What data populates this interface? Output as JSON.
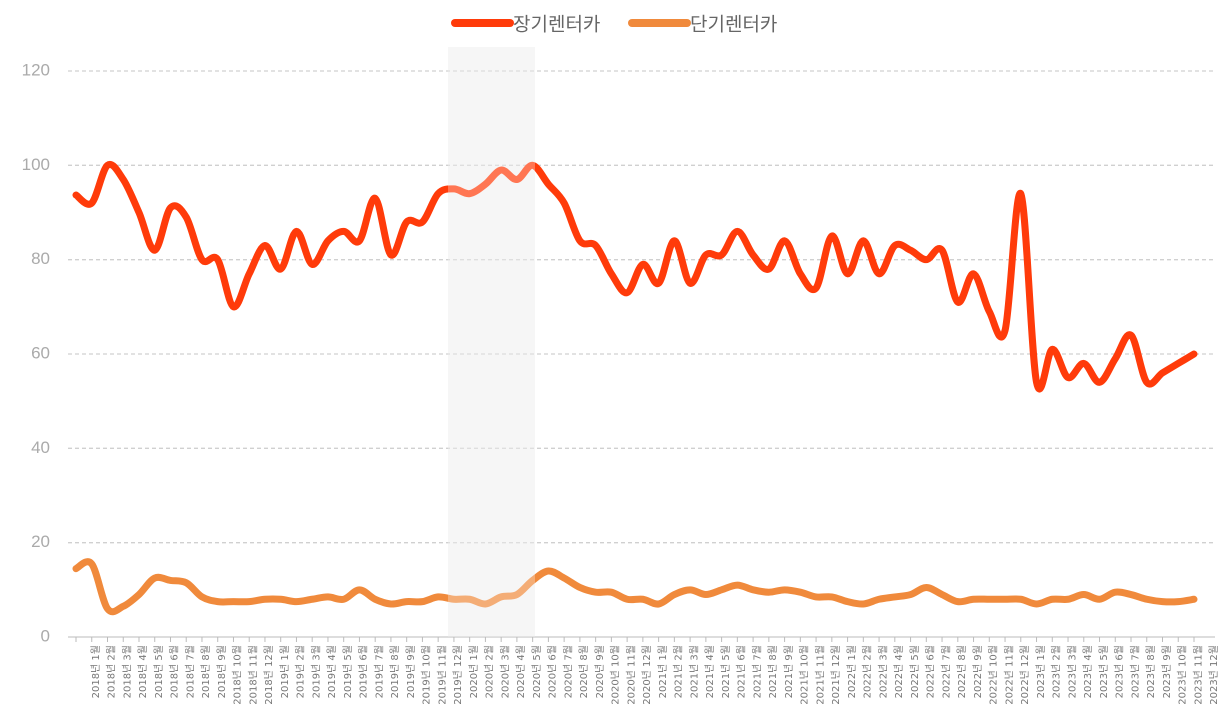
{
  "chart_data": {
    "type": "line",
    "categories": [
      "2018년 1월",
      "2018년 2월",
      "2018년 3월",
      "2018년 4월",
      "2018년 5월",
      "2018년 6월",
      "2018년 7월",
      "2018년 8월",
      "2018년 9월",
      "2018년 10월",
      "2018년 11월",
      "2018년 12월",
      "2019년 1월",
      "2019년 2월",
      "2019년 3월",
      "2019년 4월",
      "2019년 5월",
      "2019년 6월",
      "2019년 7월",
      "2019년 8월",
      "2019년 9월",
      "2019년 10월",
      "2019년 11월",
      "2019년 12월",
      "2020년 1월",
      "2020년 2월",
      "2020년 3월",
      "2020년 4월",
      "2020년 5월",
      "2020년 6월",
      "2020년 7월",
      "2020년 8월",
      "2020년 9월",
      "2020년 10월",
      "2020년 11월",
      "2020년 12월",
      "2021년 1월",
      "2021년 2월",
      "2021년 3월",
      "2021년 4월",
      "2021년 5월",
      "2021년 6월",
      "2021년 7월",
      "2021년 8월",
      "2021년 9월",
      "2021년 10월",
      "2021년 11월",
      "2021년 12월",
      "2022년 1월",
      "2022년 2월",
      "2022년 3월",
      "2022년 4월",
      "2022년 5월",
      "2022년 6월",
      "2022년 7월",
      "2022년 8월",
      "2022년 9월",
      "2022년 10월",
      "2022년 11월",
      "2022년 12월",
      "2023년 1월",
      "2023년 2월",
      "2023년 3월",
      "2023년 4월",
      "2023년 5월",
      "2023년 6월",
      "2023년 7월",
      "2023년 8월",
      "2023년 9월",
      "2023년 10월",
      "2023년 11월",
      "2023년 12월"
    ],
    "series": [
      {
        "name": "장기렌터카",
        "color": "#ff3b0a",
        "values": [
          93.7,
          92,
          100,
          97,
          90,
          82,
          91,
          89,
          80,
          80,
          70,
          77,
          83,
          78,
          86,
          79,
          84,
          86,
          84,
          93,
          81,
          88,
          88,
          94,
          95,
          94,
          96,
          99,
          97,
          100,
          96,
          92,
          84,
          83,
          77,
          73,
          79,
          75,
          84,
          75,
          81,
          81,
          86,
          81,
          78,
          84,
          77,
          74,
          85,
          77,
          84,
          77,
          83,
          82,
          80,
          82,
          71,
          77,
          69,
          65,
          94,
          54,
          61,
          55,
          58,
          54,
          59,
          64,
          54,
          56,
          58,
          60
        ]
      },
      {
        "name": "단기렌터카",
        "color": "#f08a3c",
        "values": [
          14.5,
          15.5,
          6,
          6.5,
          9,
          12.5,
          12,
          11.5,
          8.5,
          7.5,
          7.5,
          7.5,
          8,
          8,
          7.5,
          8,
          8.5,
          8,
          10,
          8,
          7,
          7.5,
          7.5,
          8.5,
          8,
          8,
          7,
          8.5,
          9,
          12,
          14,
          12.5,
          10.5,
          9.5,
          9.5,
          8,
          8,
          7,
          9,
          10,
          9,
          10,
          11,
          10,
          9.5,
          10,
          9.5,
          8.5,
          8.5,
          7.5,
          7,
          8,
          8.5,
          9,
          10.5,
          9,
          7.5,
          8,
          8,
          8,
          8,
          7,
          8,
          8,
          9,
          8,
          9.5,
          9,
          8,
          7.5,
          7.5,
          8
        ]
      }
    ],
    "ylim": [
      0,
      120
    ],
    "yticks": [
      0,
      20,
      40,
      60,
      80,
      100,
      120
    ],
    "grid": true,
    "legend": "top"
  }
}
